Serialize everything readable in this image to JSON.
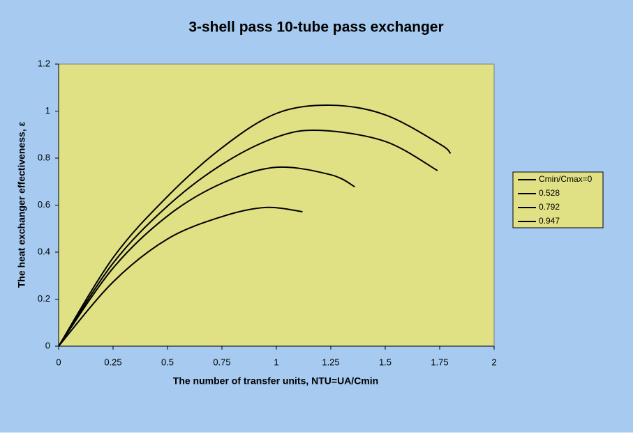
{
  "chart_data": {
    "type": "line",
    "title": "3-shell pass 10-tube pass exchanger",
    "x_label": "The number of transfer units, NTU=UA/Cmin",
    "y_label": "The heat exchanger effectiveness, ε",
    "series": [
      {
        "name": "Cmin/Cmax=0",
        "color": "#000000",
        "x": [
          0,
          0.25,
          0.5,
          0.75,
          1.0,
          1.25,
          1.5,
          1.75,
          1.8
        ],
        "values": [
          0,
          0.376,
          0.637,
          0.844,
          0.99,
          1.025,
          0.984,
          0.86,
          0.82
        ]
      },
      {
        "name": "0.528",
        "color": "#000000",
        "x": [
          0,
          0.25,
          0.5,
          0.75,
          1.0,
          1.2,
          1.5,
          1.74
        ],
        "values": [
          0,
          0.353,
          0.596,
          0.773,
          0.889,
          0.918,
          0.871,
          0.747
        ]
      },
      {
        "name": "0.792",
        "color": "#000000",
        "x": [
          0,
          0.25,
          0.5,
          0.75,
          1.0,
          1.25,
          1.36
        ],
        "values": [
          0,
          0.332,
          0.554,
          0.693,
          0.761,
          0.729,
          0.678
        ]
      },
      {
        "name": "0.947",
        "color": "#000000",
        "x": [
          0,
          0.25,
          0.5,
          0.75,
          0.95,
          1.12
        ],
        "values": [
          0,
          0.273,
          0.456,
          0.551,
          0.59,
          0.572
        ]
      }
    ],
    "xlim": [
      0,
      2
    ],
    "xticks": [
      0,
      0.25,
      0.5,
      0.75,
      1,
      1.25,
      1.5,
      1.75,
      2
    ],
    "ylim": [
      0,
      1.2
    ],
    "yticks": [
      0,
      0.2,
      0.4,
      0.6,
      0.8,
      1,
      1.2
    ],
    "legend": "right",
    "background": "#a6caf0",
    "plot_background": "#e0e084"
  }
}
